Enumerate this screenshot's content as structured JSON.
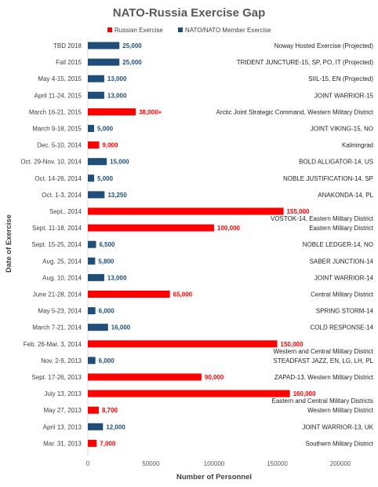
{
  "chart_data": {
    "type": "bar",
    "orientation": "horizontal",
    "title": "NATO-Russia Exercise Gap",
    "xlabel": "Number of Personnel",
    "ylabel": "Date of Exercise",
    "xlim": [
      0,
      200000
    ],
    "xticks": [
      "0",
      "50000",
      "100000",
      "150000",
      "200000"
    ],
    "grid": false,
    "legend_position": "top",
    "legend": [
      {
        "name": "Russian Exercise",
        "color": "#ff0000"
      },
      {
        "name": "NATO/NATO Member Exercise",
        "color": "#1f4e79"
      }
    ],
    "bars": [
      {
        "date": "TBD 2018",
        "value": 25000,
        "label": "25,000",
        "side": "NATO",
        "exercise": "Noway Hosted Exercise (Projected)"
      },
      {
        "date": "Fall 2015",
        "value": 25000,
        "label": "25,000",
        "side": "NATO",
        "exercise": "TRIDENT JUNCTURE-15, SP, PO, IT (Projected)"
      },
      {
        "date": "May 4-15, 2015",
        "value": 13000,
        "label": "13,000",
        "side": "NATO",
        "exercise": "SIIL-15, EN (Projected)"
      },
      {
        "date": "April 11-24, 2015",
        "value": 13000,
        "label": "13,000",
        "side": "NATO",
        "exercise": "JOINT WARRIOR-15"
      },
      {
        "date": "March 16-21, 2015",
        "value": 38000,
        "label": "38,000+",
        "side": "Russia",
        "exercise": "Arctic Joint Strategic Command, Western Military District"
      },
      {
        "date": "March 9-18, 2015",
        "value": 5000,
        "label": "5,000",
        "side": "NATO",
        "exercise": "JOINT VIKING-15, NO"
      },
      {
        "date": "Dec. 5-10, 2014",
        "value": 9000,
        "label": "9,000",
        "side": "Russia",
        "exercise": "Kaliningrad"
      },
      {
        "date": "Oct. 29-Nov. 10, 2014",
        "value": 15000,
        "label": "15,000",
        "side": "NATO",
        "exercise": "BOLD ALLIGATOR-14, US"
      },
      {
        "date": "Oct. 14-26, 2014",
        "value": 5000,
        "label": "5,000",
        "side": "NATO",
        "exercise": "NOBLE JUSTIFICATION-14, SP"
      },
      {
        "date": "Oct. 1-3, 2014",
        "value": 13250,
        "label": "13,250",
        "side": "NATO",
        "exercise": "ANAKONDA-14, PL"
      },
      {
        "date": "Sept., 2014",
        "value": 155000,
        "label": "155,000",
        "side": "Russia",
        "exercise": "VOSTOK-14, Eastern Military District"
      },
      {
        "date": "Sept. 11-18, 2014",
        "value": 100000,
        "label": "100,000",
        "side": "Russia",
        "exercise": "Eastern Military District"
      },
      {
        "date": "Sept. 15-25, 2014",
        "value": 6500,
        "label": "6,500",
        "side": "NATO",
        "exercise": "NOBLE LEDGER-14, NO"
      },
      {
        "date": "Aug. 25, 2014",
        "value": 5800,
        "label": "5,800",
        "side": "NATO",
        "exercise": "SABER JUNCTION-14"
      },
      {
        "date": "Aug. 10, 2014",
        "value": 13000,
        "label": "13,000",
        "side": "NATO",
        "exercise": "JOINT WARRIOR-14"
      },
      {
        "date": "June 21-28, 2014",
        "value": 65000,
        "label": "65,000",
        "side": "Russia",
        "exercise": "Central Military District"
      },
      {
        "date": "May 5-23, 2014",
        "value": 6000,
        "label": "6,000",
        "side": "NATO",
        "exercise": "SPRING STORM-14"
      },
      {
        "date": "March 7-21, 2014",
        "value": 16000,
        "label": "16,000",
        "side": "NATO",
        "exercise": "COLD RESPONSE-14"
      },
      {
        "date": "Feb. 26-Mar. 3, 2014",
        "value": 150000,
        "label": "150,000",
        "side": "Russia",
        "exercise": "Western and Central Military District"
      },
      {
        "date": "Nov. 2-9, 2013",
        "value": 6000,
        "label": "6,000",
        "side": "NATO",
        "exercise": "STEADFAST JAZZ, EN, LG, LH, PL"
      },
      {
        "date": "Sept. 17-26, 2013",
        "value": 90000,
        "label": "90,000",
        "side": "Russia",
        "exercise": "ZAPAD-13, Western Military District"
      },
      {
        "date": "July 13, 2013",
        "value": 160000,
        "label": "160,000",
        "side": "Russia",
        "exercise": "Eastern and Central Military Districts"
      },
      {
        "date": "May 27, 2013",
        "value": 8700,
        "label": "8,700",
        "side": "Russia",
        "exercise": "Western Military District"
      },
      {
        "date": "April 13, 2013",
        "value": 12000,
        "label": "12,000",
        "side": "NATO",
        "exercise": "JOINT WARRIOR-13, UK"
      },
      {
        "date": "Mar. 31, 2013",
        "value": 7000,
        "label": "7,000",
        "side": "Russia",
        "exercise": "Southern Military District"
      }
    ]
  }
}
